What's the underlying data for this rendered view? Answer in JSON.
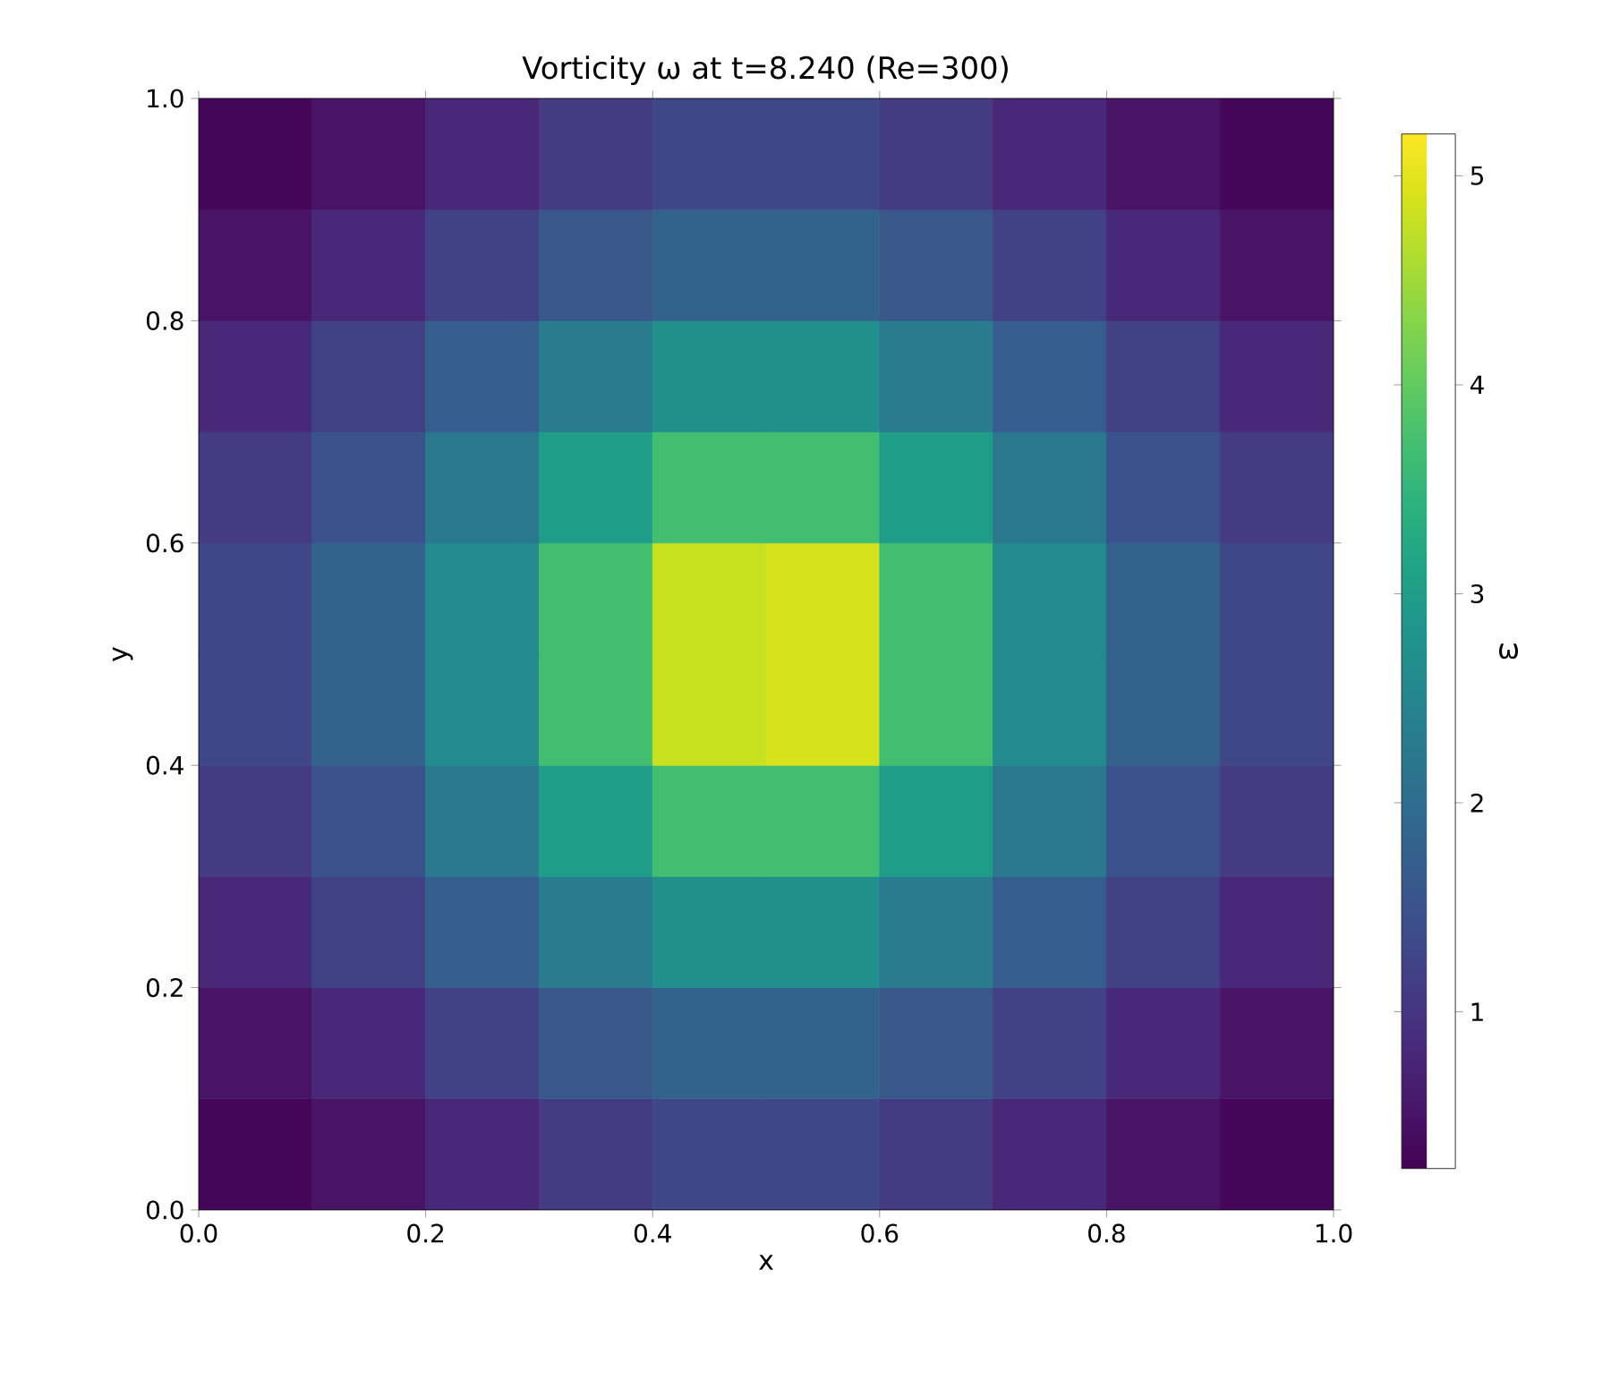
{
  "chart_data": {
    "type": "heatmap",
    "title": "Vorticity ω at t=8.240   (Re=300)",
    "xlabel": "x",
    "ylabel": "y",
    "clabel": "ω",
    "xlim": [
      0,
      1
    ],
    "ylim": [
      0,
      1
    ],
    "xticks": [
      {
        "value": 0,
        "label": "0.0"
      },
      0.2,
      0.4,
      0.6,
      0.8,
      {
        "value": 1,
        "label": "1.0"
      }
    ],
    "yticks": [
      {
        "value": 0,
        "label": "0.0"
      },
      0.2,
      0.4,
      0.6,
      0.8,
      {
        "value": 1,
        "label": "1.0"
      }
    ],
    "clim": [
      0.25,
      5.2
    ],
    "cticks": [
      1,
      2,
      3,
      4,
      5
    ],
    "cells": [
      [
        0.3,
        0.5,
        0.8,
        1.1,
        1.3,
        1.3,
        1.1,
        0.8,
        0.5,
        0.3
      ],
      [
        0.5,
        0.8,
        1.2,
        1.6,
        1.8,
        1.8,
        1.6,
        1.2,
        0.8,
        0.5
      ],
      [
        0.8,
        1.2,
        1.7,
        2.3,
        2.7,
        2.7,
        2.3,
        1.7,
        1.2,
        0.8
      ],
      [
        1.1,
        1.5,
        2.2,
        3.0,
        3.7,
        3.7,
        3.0,
        2.2,
        1.5,
        1.1
      ],
      [
        1.3,
        1.8,
        2.6,
        3.7,
        4.8,
        4.9,
        3.7,
        2.6,
        1.8,
        1.3
      ],
      [
        1.3,
        1.8,
        2.6,
        3.7,
        4.8,
        4.9,
        3.7,
        2.6,
        1.8,
        1.3
      ],
      [
        1.1,
        1.5,
        2.2,
        3.0,
        3.7,
        3.7,
        3.0,
        2.2,
        1.5,
        1.1
      ],
      [
        0.8,
        1.2,
        1.7,
        2.3,
        2.7,
        2.7,
        2.3,
        1.7,
        1.2,
        0.8
      ],
      [
        0.5,
        0.8,
        1.2,
        1.6,
        1.8,
        1.8,
        1.6,
        1.2,
        0.8,
        0.5
      ],
      [
        0.3,
        0.5,
        0.8,
        1.1,
        1.3,
        1.3,
        1.1,
        0.8,
        0.5,
        0.3
      ]
    ]
  }
}
